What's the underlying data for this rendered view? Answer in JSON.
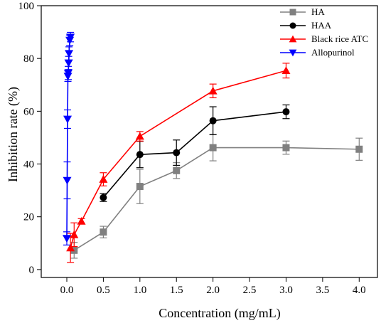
{
  "chart_data": {
    "type": "line",
    "title": "",
    "xlabel": "Concentration (mg/mL)",
    "ylabel": "Inhibition rate (%)",
    "xlim": [
      -0.35,
      4.25
    ],
    "ylim": [
      -3,
      100
    ],
    "xticks": [
      0.0,
      0.5,
      1.0,
      1.5,
      2.0,
      2.5,
      3.0,
      3.5,
      4.0
    ],
    "xtick_labels": [
      "0.0",
      "0.5",
      "1.0",
      "1.5",
      "2.0",
      "2.5",
      "3.0",
      "3.5",
      "4.0"
    ],
    "yticks": [
      0,
      20,
      40,
      60,
      80,
      100
    ],
    "ytick_labels": [
      "0",
      "20",
      "40",
      "60",
      "80",
      "100"
    ],
    "legend_position": "top-right",
    "series": [
      {
        "name": "HA",
        "color": "#808080",
        "marker": "square",
        "x": [
          0.1,
          0.5,
          1.0,
          1.5,
          2.0,
          3.0,
          4.0
        ],
        "y": [
          7.3,
          14.2,
          31.5,
          37.5,
          46.2,
          46.2,
          45.6
        ],
        "err": [
          3.0,
          2.2,
          6.5,
          3.0,
          5.0,
          2.5,
          4.2
        ]
      },
      {
        "name": "HAA",
        "color": "#000000",
        "marker": "circle",
        "x": [
          0.5,
          1.0,
          1.5,
          2.0,
          3.0
        ],
        "y": [
          27.3,
          43.6,
          44.3,
          56.4,
          59.8
        ],
        "err": [
          1.5,
          5.0,
          4.8,
          5.3,
          2.6
        ]
      },
      {
        "name": "Black rice ATC",
        "color": "#ff0000",
        "marker": "triangle-up",
        "x": [
          0.05,
          0.1,
          0.2,
          0.5,
          1.0,
          2.0,
          3.0
        ],
        "y": [
          8.2,
          13.2,
          18.3,
          34.2,
          50.5,
          67.7,
          75.4
        ],
        "err": [
          5.5,
          4.5,
          1.0,
          2.5,
          1.8,
          2.6,
          2.8
        ]
      },
      {
        "name": "Allopurinol",
        "color": "#0000ff",
        "marker": "triangle-down",
        "x": [
          0.0,
          0.005,
          0.01,
          0.015,
          0.02,
          0.025,
          0.03,
          0.04,
          0.05
        ],
        "y": [
          11.8,
          33.8,
          57.0,
          73.3,
          74.5,
          78.3,
          81.9,
          86.9,
          88.1
        ],
        "err": [
          2.5,
          7.0,
          3.5,
          2.0,
          2.5,
          2.5,
          2.5,
          2.0,
          1.8
        ]
      }
    ]
  }
}
